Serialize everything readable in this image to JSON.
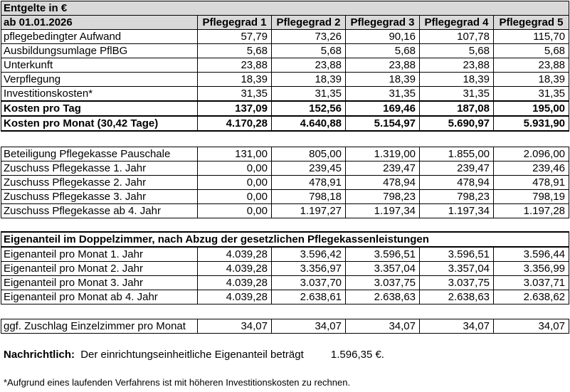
{
  "title": "Entgelte in €",
  "date_label": "ab 01.01.2026",
  "columns": [
    "Pflegegrad 1",
    "Pflegegrad 2",
    "Pflegegrad 3",
    "Pflegegrad 4",
    "Pflegegrad 5"
  ],
  "costs": [
    {
      "label": "pflegebedingter Aufwand",
      "values": [
        "57,79",
        "73,26",
        "90,16",
        "107,78",
        "115,70"
      ]
    },
    {
      "label": "Ausbildungsumlage PflBG",
      "values": [
        "5,68",
        "5,68",
        "5,68",
        "5,68",
        "5,68"
      ]
    },
    {
      "label": "Unterkunft",
      "values": [
        "23,88",
        "23,88",
        "23,88",
        "23,88",
        "23,88"
      ]
    },
    {
      "label": "Verpflegung",
      "values": [
        "18,39",
        "18,39",
        "18,39",
        "18,39",
        "18,39"
      ]
    },
    {
      "label": "Investitionskosten*",
      "values": [
        "31,35",
        "31,35",
        "31,35",
        "31,35",
        "31,35"
      ]
    }
  ],
  "cost_per_day": {
    "label": "Kosten pro Tag",
    "values": [
      "137,09",
      "152,56",
      "169,46",
      "187,08",
      "195,00"
    ]
  },
  "cost_per_month": {
    "label": "Kosten pro Monat (30,42 Tage)",
    "values": [
      "4.170,28",
      "4.640,88",
      "5.154,97",
      "5.690,97",
      "5.931,90"
    ]
  },
  "benefits": [
    {
      "label": "Beteiligung Pflegekasse Pauschale",
      "values": [
        "131,00",
        "805,00",
        "1.319,00",
        "1.855,00",
        "2.096,00"
      ]
    },
    {
      "label": "Zuschuss Pflegekasse 1. Jahr",
      "values": [
        "0,00",
        "239,45",
        "239,47",
        "239,47",
        "239,46"
      ]
    },
    {
      "label": "Zuschuss Pflegekasse 2. Jahr",
      "values": [
        "0,00",
        "478,91",
        "478,94",
        "478,94",
        "478,91"
      ]
    },
    {
      "label": "Zuschuss Pflegekasse 3. Jahr",
      "values": [
        "0,00",
        "798,18",
        "798,23",
        "798,23",
        "798,19"
      ]
    },
    {
      "label": "Zuschuss Pflegekasse ab 4. Jahr",
      "values": [
        "0,00",
        "1.197,27",
        "1.197,34",
        "1.197,34",
        "1.197,28"
      ]
    }
  ],
  "eigen_header": "Eigenanteil im Doppelzimmer, nach Abzug der gesetzlichen Pflegekassenleistungen",
  "eigen": [
    {
      "label": "Eigenanteil pro Monat 1. Jahr",
      "values": [
        "4.039,28",
        "3.596,42",
        "3.596,51",
        "3.596,51",
        "3.596,44"
      ]
    },
    {
      "label": "Eigenanteil pro Monat 2. Jahr",
      "values": [
        "4.039,28",
        "3.356,97",
        "3.357,04",
        "3.357,04",
        "3.356,99"
      ]
    },
    {
      "label": "Eigenanteil pro Monat 3. Jahr",
      "values": [
        "4.039,28",
        "3.037,70",
        "3.037,75",
        "3.037,75",
        "3.037,71"
      ]
    },
    {
      "label": "Eigenanteil pro Monat ab 4. Jahr",
      "values": [
        "4.039,28",
        "2.638,61",
        "2.638,63",
        "2.638,63",
        "2.638,62"
      ]
    }
  ],
  "surcharge": {
    "label": "ggf. Zuschlag Einzelzimmer pro Monat",
    "values": [
      "34,07",
      "34,07",
      "34,07",
      "34,07",
      "34,07"
    ]
  },
  "note": {
    "label": "Nachrichtlich:",
    "text": "Der einrichtungseinheitliche Eigenanteil beträgt",
    "value": "1.596,35 €."
  },
  "footnote": "*Aufgrund eines laufenden Verfahrens ist mit höheren Investitionskosten zu rechnen."
}
